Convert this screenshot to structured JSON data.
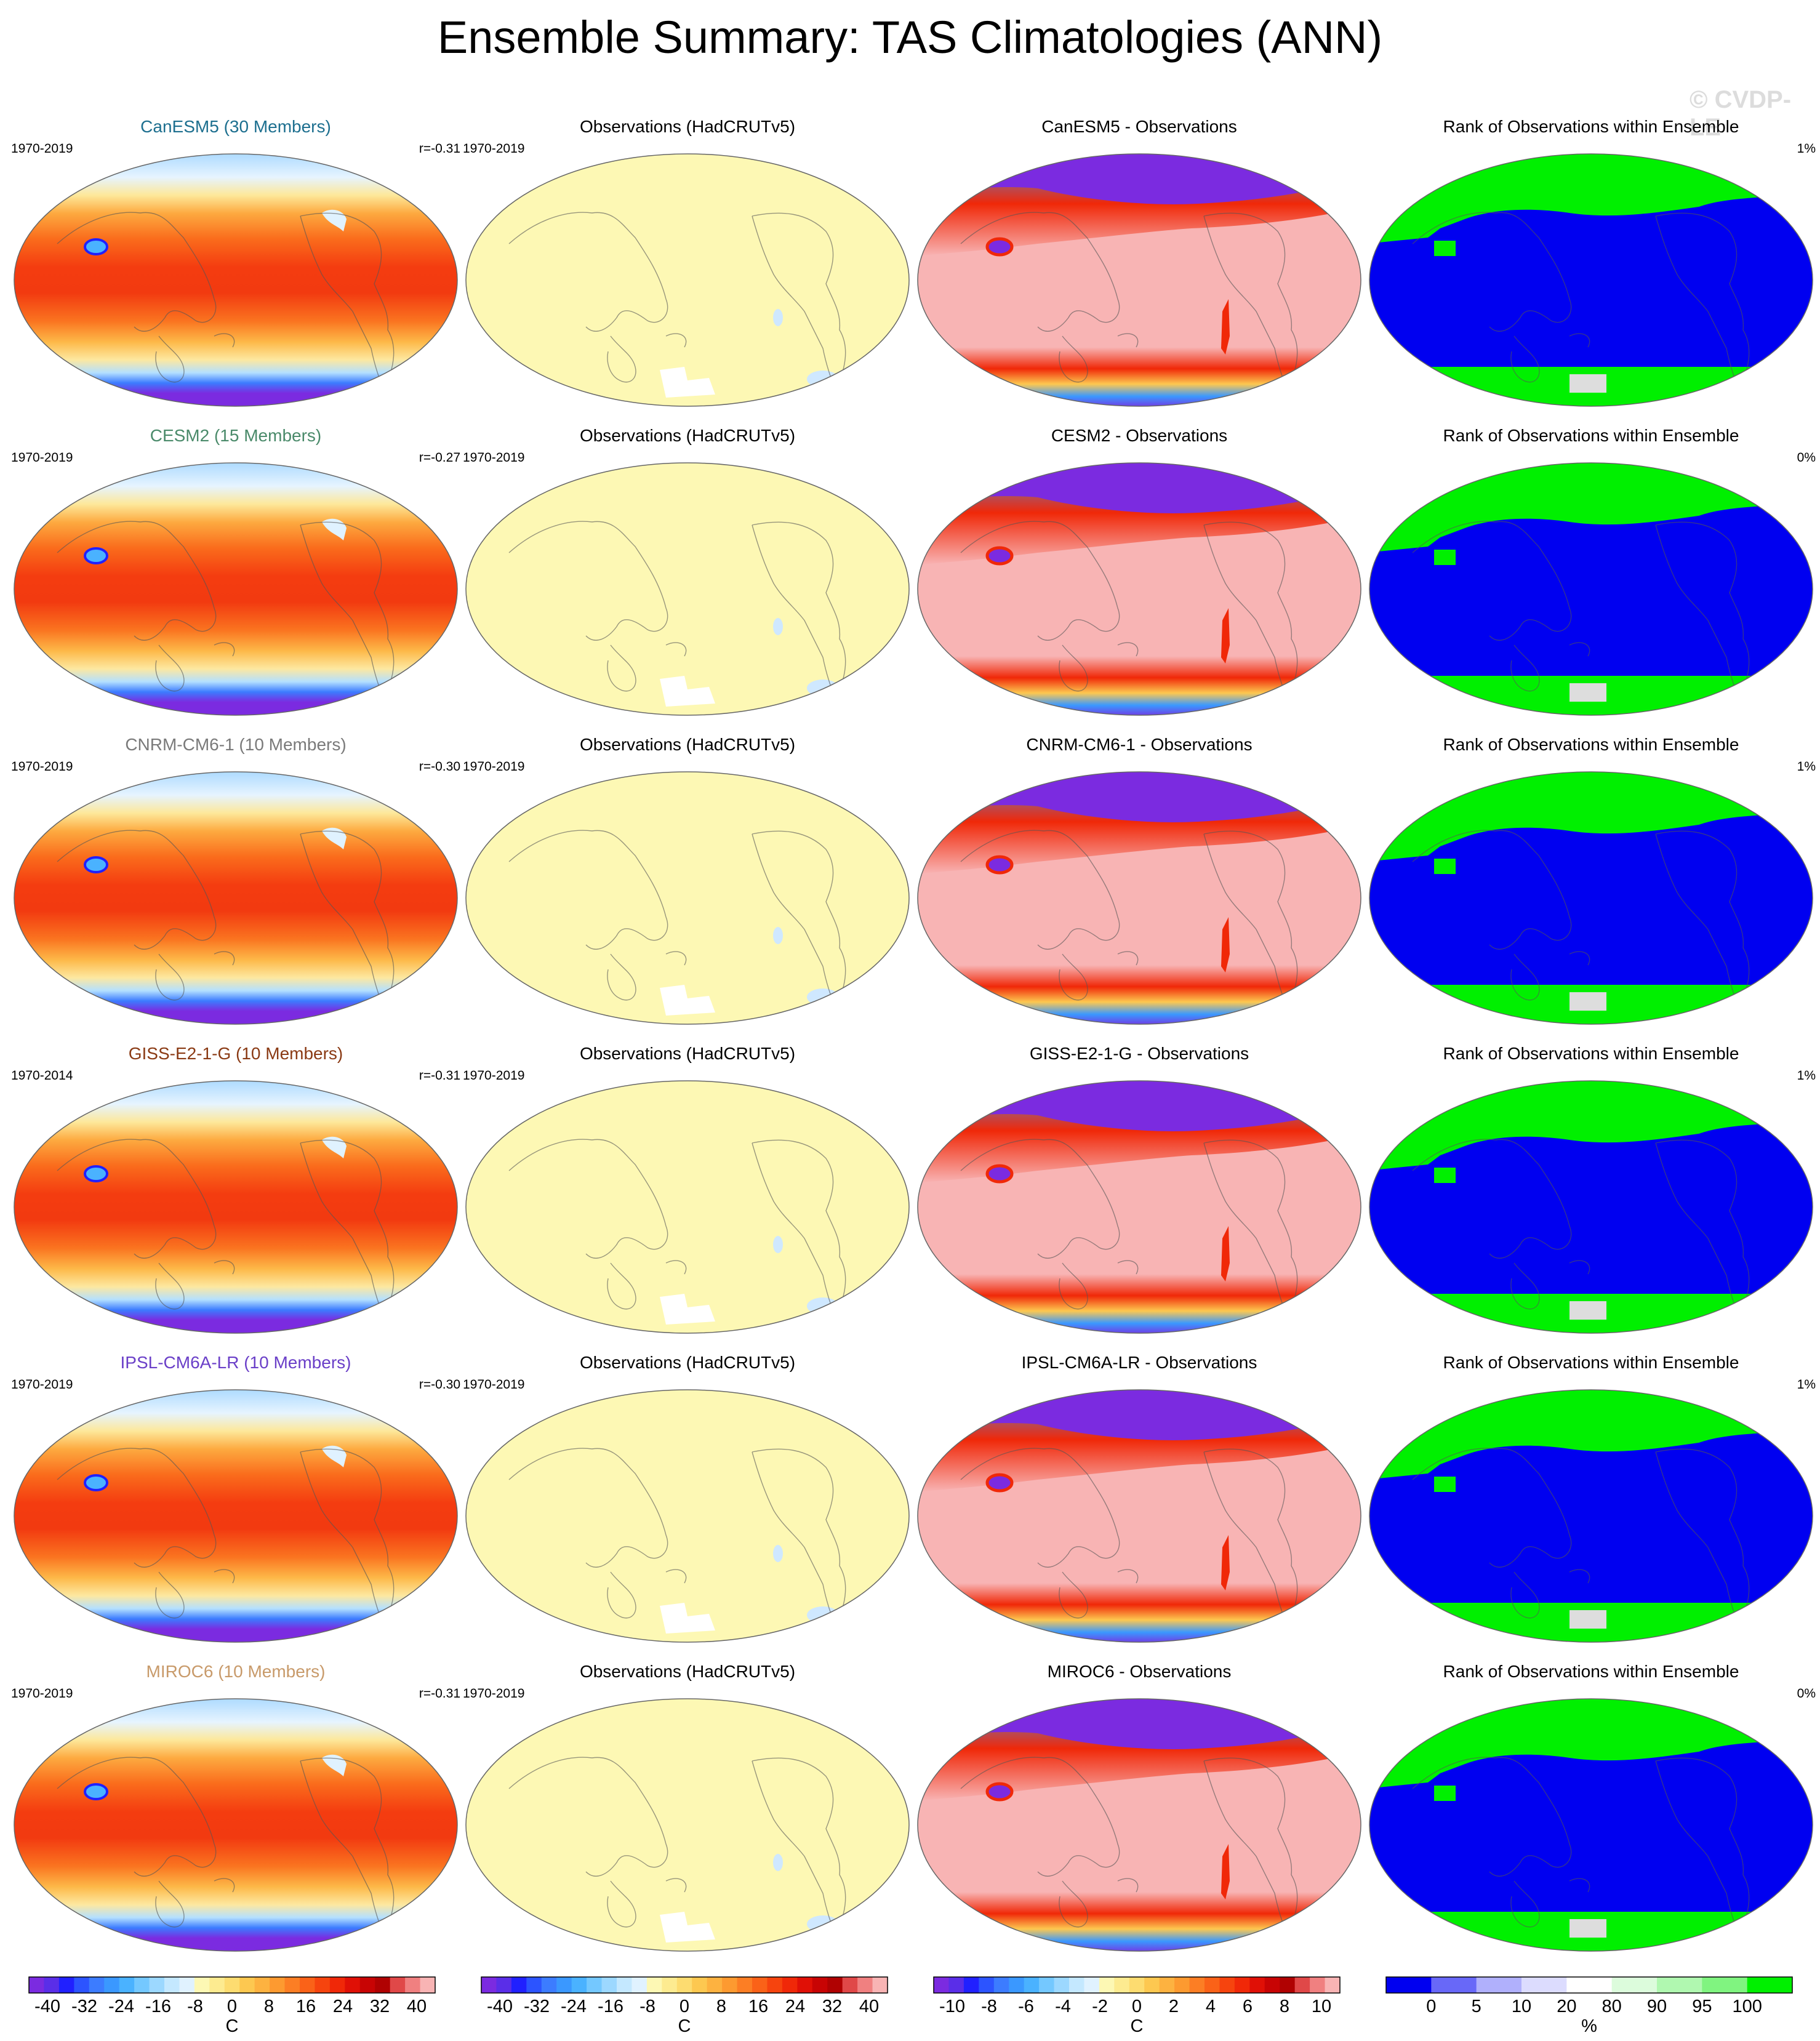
{
  "title": "Ensemble Summary: TAS Climatologies (ANN)",
  "watermark": "© CVDP-LE",
  "colors": {
    "title_canesm5": "#1d6f8f",
    "title_cesm2": "#4a8a6a",
    "title_cnrm": "#7a7a7a",
    "title_giss": "#8a3a14",
    "title_ipsl": "#6a3fc8",
    "title_miroc": "#c89a6a",
    "obs_fill": "#fdf8b4",
    "diff_fill": "#f8b4b4",
    "diff_cold": "#7b2be0",
    "rank_ocean": "#0000f0",
    "rank_pole": "#00f000"
  },
  "rows": [
    {
      "model_title": "CanESM5 (30 Members)",
      "model_period": "1970-2019",
      "r": "r=-0.31",
      "obs_title": "Observations (HadCRUTv5)",
      "obs_period": "1970-2019",
      "diff_title": "CanESM5 - Observations",
      "rank_title": "Rank of Observations within Ensemble",
      "rank_pct": "1%"
    },
    {
      "model_title": "CESM2 (15 Members)",
      "model_period": "1970-2019",
      "r": "r=-0.27",
      "obs_title": "Observations (HadCRUTv5)",
      "obs_period": "1970-2019",
      "diff_title": "CESM2 - Observations",
      "rank_title": "Rank of Observations within Ensemble",
      "rank_pct": "0%"
    },
    {
      "model_title": "CNRM-CM6-1 (10 Members)",
      "model_period": "1970-2019",
      "r": "r=-0.30",
      "obs_title": "Observations (HadCRUTv5)",
      "obs_period": "1970-2019",
      "diff_title": "CNRM-CM6-1 - Observations",
      "rank_title": "Rank of Observations within Ensemble",
      "rank_pct": "1%"
    },
    {
      "model_title": "GISS-E2-1-G (10 Members)",
      "model_period": "1970-2014",
      "r": "r=-0.31",
      "obs_title": "Observations (HadCRUTv5)",
      "obs_period": "1970-2019",
      "diff_title": "GISS-E2-1-G - Observations",
      "rank_title": "Rank of Observations within Ensemble",
      "rank_pct": "1%"
    },
    {
      "model_title": "IPSL-CM6A-LR (10 Members)",
      "model_period": "1970-2019",
      "r": "r=-0.30",
      "obs_title": "Observations (HadCRUTv5)",
      "obs_period": "1970-2019",
      "diff_title": "IPSL-CM6A-LR - Observations",
      "rank_title": "Rank of Observations within Ensemble",
      "rank_pct": "1%"
    },
    {
      "model_title": "MIROC6 (10 Members)",
      "model_period": "1970-2019",
      "r": "r=-0.31",
      "obs_title": "Observations (HadCRUTv5)",
      "obs_period": "1970-2019",
      "diff_title": "MIROC6 - Observations",
      "rank_title": "Rank of Observations within Ensemble",
      "rank_pct": "0%"
    }
  ],
  "colorbars": {
    "clim": {
      "labels": [
        "-40",
        "-32",
        "-24",
        "-16",
        "-8",
        "0",
        "8",
        "16",
        "24",
        "32",
        "40"
      ],
      "unit": "C",
      "colors": [
        "#7b2be0",
        "#5a2ee8",
        "#2020ff",
        "#2c54ff",
        "#3c7cff",
        "#3a98ff",
        "#4ab2ff",
        "#74c8ff",
        "#9cd8ff",
        "#c4e8ff",
        "#e0f2ff",
        "#fdf8b4",
        "#fdeb90",
        "#fddc70",
        "#fdc850",
        "#fdb240",
        "#fd9a30",
        "#fc7e24",
        "#fa6218",
        "#f6440e",
        "#f02808",
        "#e01006",
        "#c80404",
        "#b00202",
        "#e04848",
        "#f08080",
        "#f8b4b4"
      ]
    },
    "obs": {
      "labels": [
        "-40",
        "-32",
        "-24",
        "-16",
        "-8",
        "0",
        "8",
        "16",
        "24",
        "32",
        "40"
      ],
      "unit": "C",
      "colors": [
        "#7b2be0",
        "#5a2ee8",
        "#2020ff",
        "#2c54ff",
        "#3c7cff",
        "#3a98ff",
        "#4ab2ff",
        "#74c8ff",
        "#9cd8ff",
        "#c4e8ff",
        "#e0f2ff",
        "#fdf8b4",
        "#fdeb90",
        "#fddc70",
        "#fdc850",
        "#fdb240",
        "#fd9a30",
        "#fc7e24",
        "#fa6218",
        "#f6440e",
        "#f02808",
        "#e01006",
        "#c80404",
        "#b00202",
        "#e04848",
        "#f08080",
        "#f8b4b4"
      ]
    },
    "diff": {
      "labels": [
        "-10",
        "-8",
        "-6",
        "-4",
        "-2",
        "0",
        "2",
        "4",
        "6",
        "8",
        "10"
      ],
      "unit": "C",
      "colors": [
        "#7b2be0",
        "#5a2ee8",
        "#2020ff",
        "#2c54ff",
        "#3c7cff",
        "#3a98ff",
        "#4ab2ff",
        "#74c8ff",
        "#9cd8ff",
        "#c4e8ff",
        "#e0f2ff",
        "#fdf8b4",
        "#fdeb90",
        "#fddc70",
        "#fdc850",
        "#fdb240",
        "#fd9a30",
        "#fc7e24",
        "#fa6218",
        "#f6440e",
        "#f02808",
        "#e01006",
        "#c80404",
        "#b00202",
        "#e04848",
        "#f08080",
        "#f8b4b4"
      ]
    },
    "rank": {
      "labels": [
        "0",
        "5",
        "10",
        "20",
        "80",
        "90",
        "95",
        "100"
      ],
      "unit": "%",
      "colors": [
        "#0000f0",
        "#6868f8",
        "#b0b0fc",
        "#dcdcfe",
        "#ffffff",
        "#dcfcdc",
        "#b0f8b0",
        "#80f480",
        "#00f000"
      ]
    }
  }
}
